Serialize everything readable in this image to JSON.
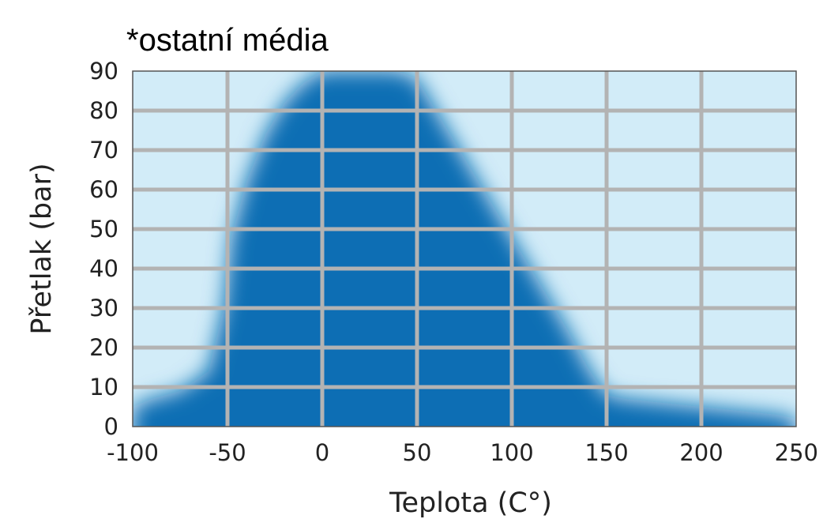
{
  "chart_data": {
    "type": "area",
    "title": "*ostatní média",
    "xlabel": "Teplota (C°)",
    "ylabel": "Přetlak (bar)",
    "xlim": [
      -100,
      250
    ],
    "ylim": [
      0,
      90
    ],
    "x_ticks": [
      "-100",
      "-50",
      "0",
      "50",
      "100",
      "150",
      "200",
      "250"
    ],
    "y_ticks": [
      "0",
      "10",
      "20",
      "30",
      "40",
      "50",
      "60",
      "70",
      "80",
      "90"
    ],
    "grid": true,
    "series": [
      {
        "x": [
          -100,
          -90,
          -75,
          -60,
          -52,
          -48,
          -40,
          -30,
          -20,
          -10,
          0,
          10,
          20,
          30,
          40,
          50,
          60,
          70,
          80,
          90,
          100,
          110,
          120,
          130,
          140,
          150,
          160,
          170,
          180,
          190,
          200,
          210,
          220,
          230,
          240,
          250
        ],
        "y": [
          5,
          7,
          9,
          14,
          30,
          48,
          62,
          74,
          82,
          87,
          90,
          90,
          90,
          90,
          90,
          88,
          80,
          72,
          64,
          56,
          48,
          40,
          32,
          24,
          15,
          8,
          7,
          6.5,
          6,
          5.5,
          5,
          4.5,
          4,
          3.5,
          3,
          2
        ]
      }
    ],
    "colors": {
      "plot_background": "#d2ecf8",
      "fill": "#0a6eb4",
      "grid": "#b3b3b3",
      "border": "#555555"
    }
  }
}
